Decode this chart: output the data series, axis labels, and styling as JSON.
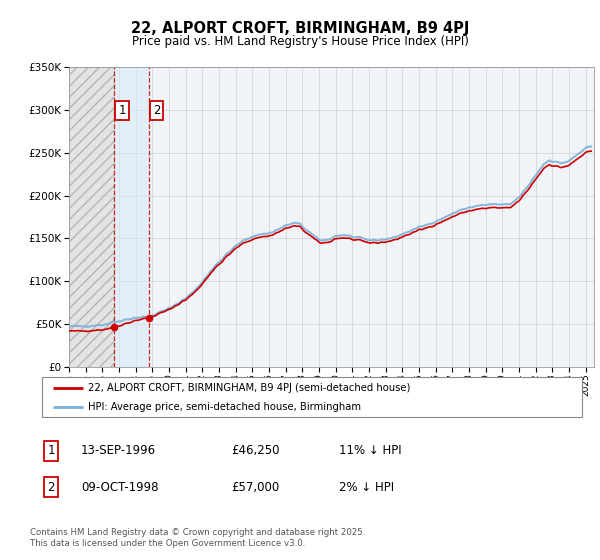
{
  "title": "22, ALPORT CROFT, BIRMINGHAM, B9 4PJ",
  "subtitle": "Price paid vs. HM Land Registry's House Price Index (HPI)",
  "legend_entry1": "22, ALPORT CROFT, BIRMINGHAM, B9 4PJ (semi-detached house)",
  "legend_entry2": "HPI: Average price, semi-detached house, Birmingham",
  "footnote": "Contains HM Land Registry data © Crown copyright and database right 2025.\nThis data is licensed under the Open Government Licence v3.0.",
  "sale1_date": 1996.706,
  "sale1_price": 46250,
  "sale1_label": "1",
  "sale1_text": "13-SEP-1996",
  "sale1_pricetxt": "£46,250",
  "sale1_hpi": "11% ↓ HPI",
  "sale2_date": 1998.771,
  "sale2_price": 57000,
  "sale2_label": "2",
  "sale2_text": "09-OCT-1998",
  "sale2_pricetxt": "£57,000",
  "sale2_hpi": "2% ↓ HPI",
  "hpi_color": "#7aaed6",
  "sale_color": "#cc0000",
  "xmin": 1994.0,
  "xmax": 2025.5,
  "ymin": 0,
  "ymax": 350000,
  "hatch_xstart": 1994.0,
  "chart_bg": "#f0f4f8",
  "fig_bg": "#ffffff"
}
